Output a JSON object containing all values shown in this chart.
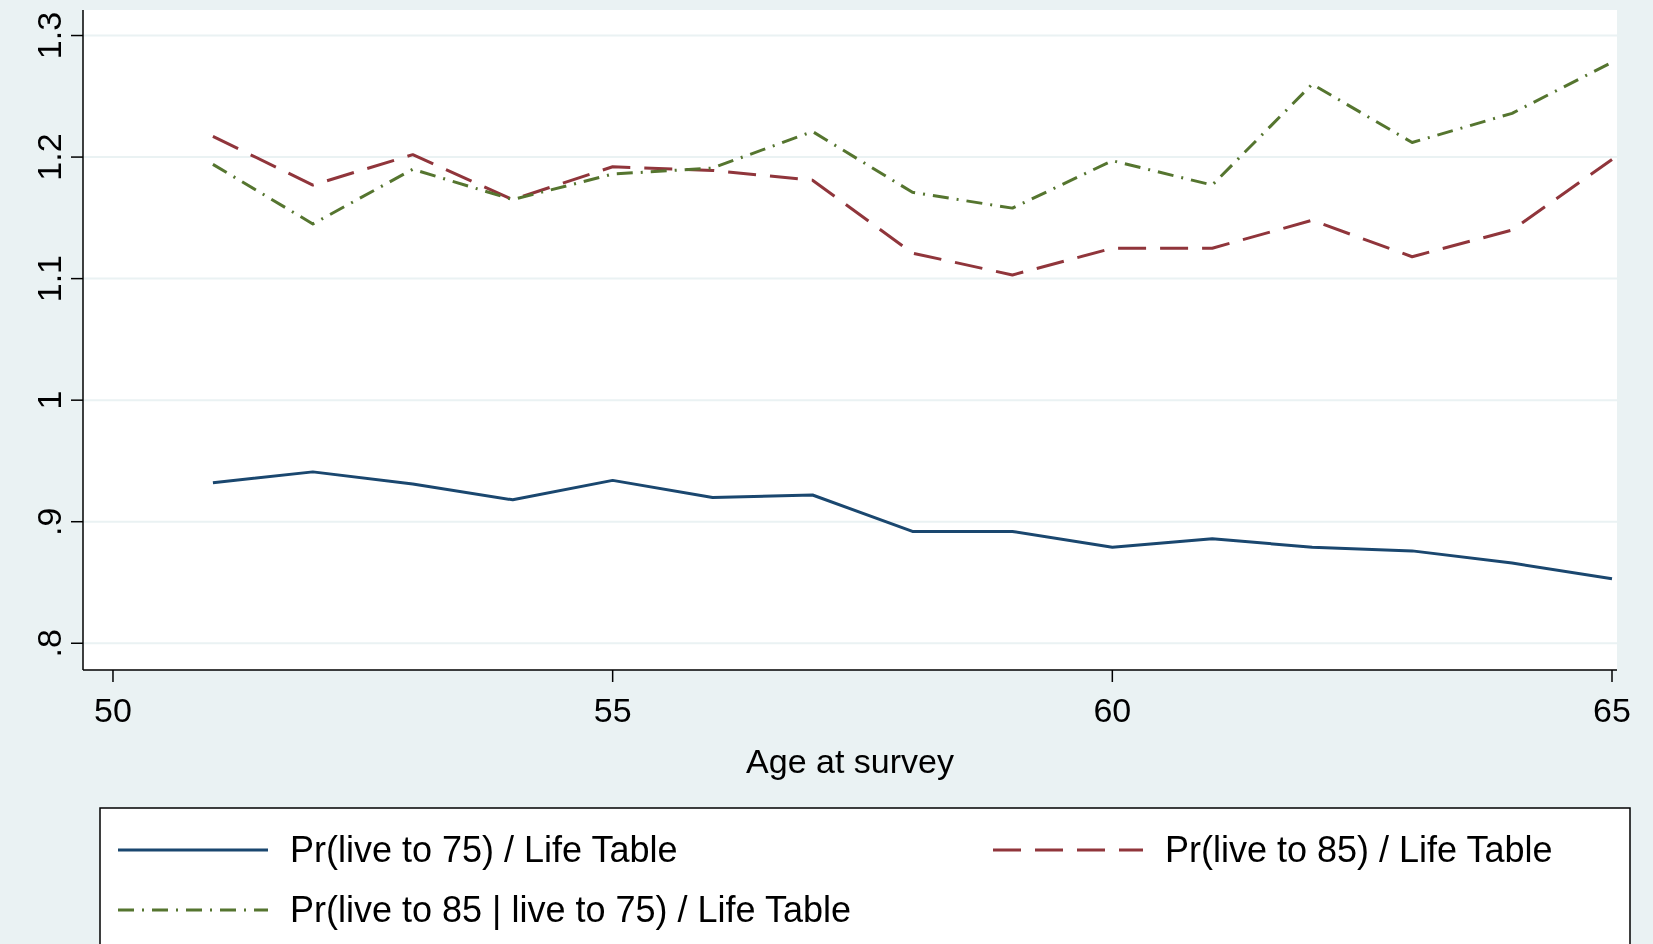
{
  "chart_data": {
    "type": "line",
    "xlabel": "Age at survey",
    "x": [
      51,
      52,
      53,
      54,
      55,
      56,
      57,
      58,
      59,
      60,
      61,
      62,
      63,
      64,
      65
    ],
    "xlim": [
      49.7,
      65.05
    ],
    "xticks": [
      50,
      55,
      60,
      65
    ],
    "ylim": [
      0.778,
      1.321
    ],
    "yticks": [
      {
        "value": 0.8,
        "label": ".8"
      },
      {
        "value": 0.9,
        "label": ".9"
      },
      1,
      1.1,
      1.2,
      1.3
    ],
    "grid": "y",
    "legend": "bottom",
    "series": [
      {
        "name": "Pr(live to 75) / Life Table",
        "color": "#1a476f",
        "line_style": "solid",
        "values": [
          0.932,
          0.941,
          0.931,
          0.918,
          0.934,
          0.92,
          0.922,
          0.892,
          0.892,
          0.879,
          0.886,
          0.879,
          0.876,
          0.866,
          0.853
        ]
      },
      {
        "name": "Pr(live to 85) / Life Table",
        "color": "#90353b",
        "line_style": "dashed",
        "values": [
          1.217,
          1.177,
          1.202,
          1.165,
          1.192,
          1.189,
          1.181,
          1.121,
          1.103,
          1.125,
          1.125,
          1.148,
          1.118,
          1.14,
          1.198
        ]
      },
      {
        "name": "Pr(live to 85 | live to 75) / Life Table",
        "color": "#55752f",
        "line_style": "dashdot",
        "values": [
          1.194,
          1.145,
          1.19,
          1.165,
          1.186,
          1.191,
          1.221,
          1.171,
          1.158,
          1.197,
          1.177,
          1.26,
          1.212,
          1.236,
          1.278
        ]
      }
    ]
  }
}
